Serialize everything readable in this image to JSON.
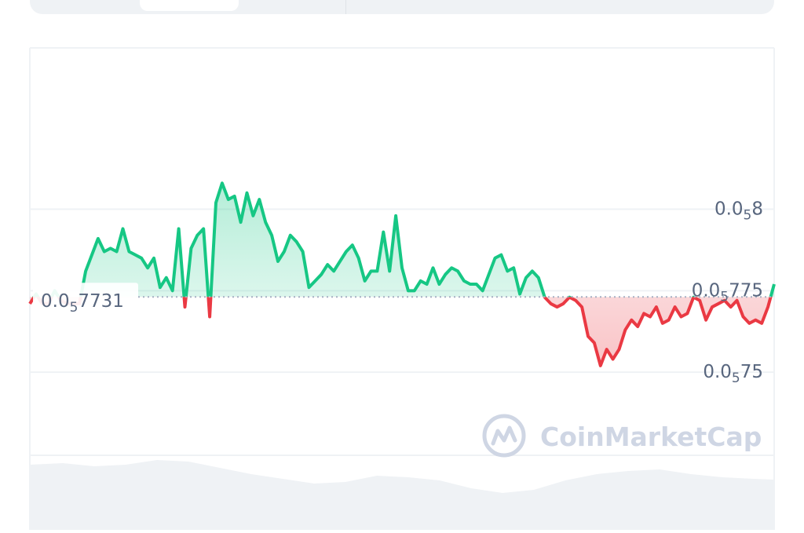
{
  "chart_data": {
    "type": "area",
    "baseline": {
      "value": 0.057731,
      "label_prefix": "0.0",
      "label_sub": "5",
      "label_rest": "7731"
    },
    "y_ticks": [
      {
        "value": 0.058,
        "prefix": "0.0",
        "sub": "5",
        "rest": "8"
      },
      {
        "value": 0.05775,
        "prefix": "0.0",
        "sub": "5",
        "rest": "775"
      },
      {
        "value": 0.0575,
        "prefix": "0.0",
        "sub": "5",
        "rest": "75"
      }
    ],
    "ylim": [
      0.057245,
      0.058495
    ],
    "grid": true,
    "colors": {
      "up": "#16c784",
      "down": "#ea3943",
      "up_fill": "#16c784",
      "down_fill": "#ea3943",
      "grid": "#eff2f5",
      "tick_text": "#58667e",
      "watermark": "#cfd6e4"
    },
    "values": [
      0.05771,
      0.05774,
      0.05771,
      0.05771,
      0.05775,
      0.05772,
      0.05771,
      0.05771,
      0.05771,
      0.05781,
      0.05786,
      0.05791,
      0.05787,
      0.05788,
      0.05787,
      0.05794,
      0.05787,
      0.05786,
      0.05785,
      0.05782,
      0.05785,
      0.05776,
      0.05779,
      0.05775,
      0.05794,
      0.0577,
      0.05788,
      0.05792,
      0.05794,
      0.05767,
      0.05802,
      0.05808,
      0.05803,
      0.05804,
      0.05796,
      0.05805,
      0.05798,
      0.05803,
      0.05796,
      0.05792,
      0.05784,
      0.05787,
      0.05792,
      0.0579,
      0.05787,
      0.05776,
      0.05778,
      0.0578,
      0.05783,
      0.05781,
      0.05784,
      0.05787,
      0.05789,
      0.05785,
      0.05778,
      0.05781,
      0.05781,
      0.05793,
      0.05781,
      0.05798,
      0.05782,
      0.05775,
      0.05775,
      0.05778,
      0.05777,
      0.05782,
      0.05777,
      0.0578,
      0.05782,
      0.05781,
      0.05778,
      0.05777,
      0.05777,
      0.05775,
      0.0578,
      0.05785,
      0.05786,
      0.05781,
      0.05782,
      0.05774,
      0.05779,
      0.05781,
      0.05779,
      0.05773,
      0.05771,
      0.0577,
      0.05771,
      0.05773,
      0.05772,
      0.0577,
      0.05761,
      0.05759,
      0.05752,
      0.05757,
      0.05754,
      0.05757,
      0.05763,
      0.05766,
      0.05764,
      0.05768,
      0.05767,
      0.0577,
      0.05765,
      0.05766,
      0.0577,
      0.05767,
      0.05768,
      0.05773,
      0.05772,
      0.05766,
      0.0577,
      0.05771,
      0.05772,
      0.0577,
      0.05772,
      0.05767,
      0.05765,
      0.05766,
      0.05765,
      0.0577,
      0.05777
    ]
  },
  "watermark": {
    "text": "CoinMarketCap",
    "icon": "coinmarketcap-logo-icon"
  }
}
